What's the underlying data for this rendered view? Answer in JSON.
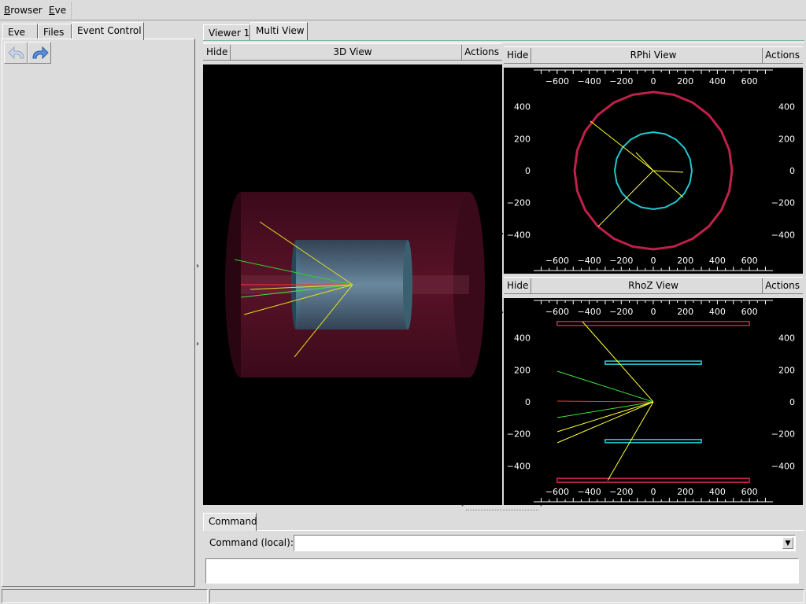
{
  "menubar": {
    "items": [
      {
        "label": "Browser",
        "u": "B",
        "rest": "rowser"
      },
      {
        "label": "Eve",
        "u": "E",
        "rest": "ve"
      }
    ]
  },
  "left_tabs": [
    "Eve",
    "Files",
    "Event Control"
  ],
  "left_active_tab": "Event Control",
  "nav": {
    "back_icon": "undo-arrow-icon",
    "forward_icon": "redo-arrow-icon"
  },
  "main_tabs": [
    "Viewer 1",
    "Multi View"
  ],
  "main_active_tab": "Multi View",
  "views": {
    "view3d": {
      "hide": "Hide",
      "title": "3D View",
      "actions": "Actions"
    },
    "rphi": {
      "hide": "Hide",
      "title": "RPhi View",
      "actions": "Actions"
    },
    "rhoz": {
      "hide": "Hide",
      "title": "RhoZ View",
      "actions": "Actions"
    }
  },
  "axes": {
    "x_ticks": [
      "−600",
      "−400",
      "−200",
      "0",
      "200",
      "400",
      "600"
    ],
    "y_ticks": [
      "400",
      "200",
      "0",
      "−200",
      "−400"
    ]
  },
  "colors": {
    "outer_detector": "#c0204a",
    "inner_detector": "#20c8d0",
    "track_yellow": "#ffff30",
    "track_green": "#40e040",
    "track_red": "#ff3030"
  },
  "command": {
    "tab": "Command",
    "label": "Command (local):",
    "value": "",
    "output": ""
  }
}
